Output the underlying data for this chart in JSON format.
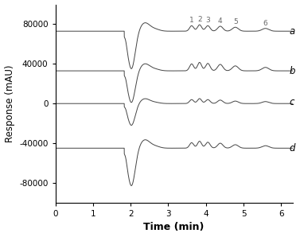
{
  "xlabel": "Time (min)",
  "ylabel": "Response (mAU)",
  "xlim": [
    0,
    6.3
  ],
  "ylim": [
    -100000,
    100000
  ],
  "yticks": [
    -80000,
    -40000,
    0,
    40000,
    80000
  ],
  "xticks": [
    0,
    1,
    2,
    3,
    4,
    5,
    6
  ],
  "baseline_a": 73000,
  "baseline_b": 33000,
  "baseline_c": 0,
  "baseline_d": -45000,
  "peak_positions": [
    3.62,
    3.83,
    4.05,
    4.38,
    4.78,
    5.58
  ],
  "peak_widths": [
    0.055,
    0.055,
    0.06,
    0.07,
    0.08,
    0.09
  ],
  "peak_heights_a": [
    5500,
    6500,
    5500,
    5000,
    4000,
    2800
  ],
  "peak_heights_b": [
    7000,
    8500,
    7500,
    6500,
    5000,
    3500
  ],
  "peak_heights_c": [
    4000,
    5000,
    4000,
    3500,
    2500,
    2000
  ],
  "peak_heights_d": [
    5500,
    7000,
    6000,
    5000,
    3500,
    2500
  ],
  "label_a": "a",
  "label_b": "b",
  "label_c": "c",
  "label_d": "d",
  "peak_labels": [
    "1",
    "2",
    "3",
    "4",
    "5",
    "6"
  ],
  "line_color": "#444444",
  "background_color": "#ffffff",
  "figsize": [
    3.77,
    2.98
  ],
  "dpi": 100
}
